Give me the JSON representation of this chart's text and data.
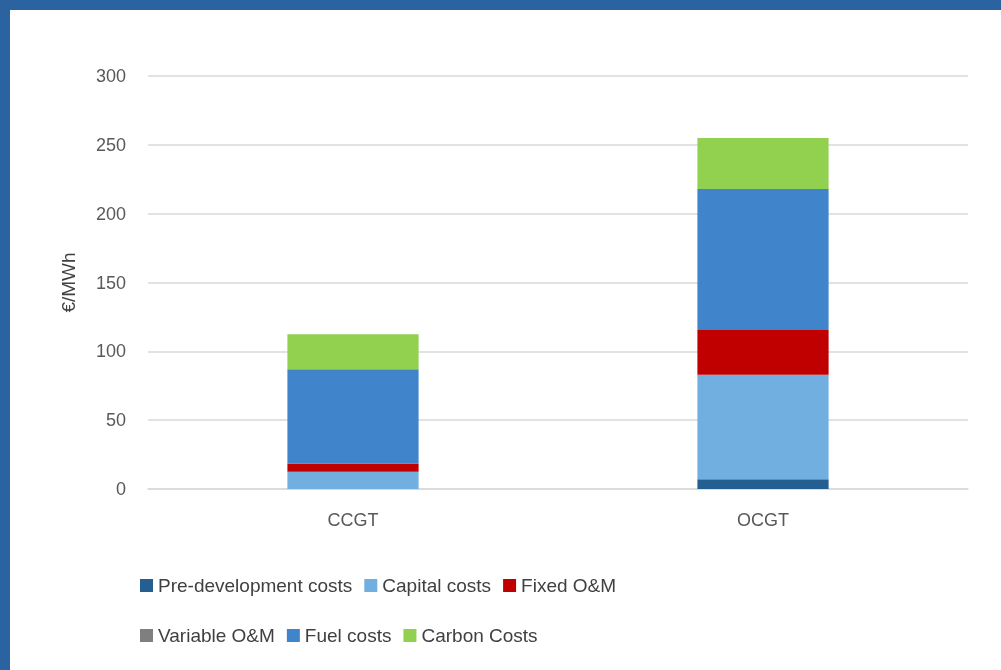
{
  "chart_data": {
    "type": "bar",
    "stacked": true,
    "ylabel": "€/MWh",
    "categories": [
      "CCGT",
      "OCGT"
    ],
    "series": [
      {
        "name": "Pre-development costs",
        "color": "#255e91",
        "values": [
          0,
          7
        ]
      },
      {
        "name": "Capital costs",
        "color": "#70afe0",
        "values": [
          12.5,
          76
        ]
      },
      {
        "name": "Fixed O&M",
        "color": "#c00000",
        "values": [
          6,
          32.5
        ]
      },
      {
        "name": "Variable O&M",
        "color": "#7f7f7f",
        "values": [
          0,
          0
        ]
      },
      {
        "name": "Fuel costs",
        "color": "#4085cb",
        "values": [
          68.5,
          102.5
        ]
      },
      {
        "name": "Carbon Costs",
        "color": "#92d050",
        "values": [
          25.5,
          37
        ]
      }
    ],
    "ylim": [
      0,
      300
    ],
    "yticks": [
      0,
      50,
      100,
      150,
      200,
      250,
      300
    ],
    "grid": "y",
    "legend": "bottom"
  }
}
